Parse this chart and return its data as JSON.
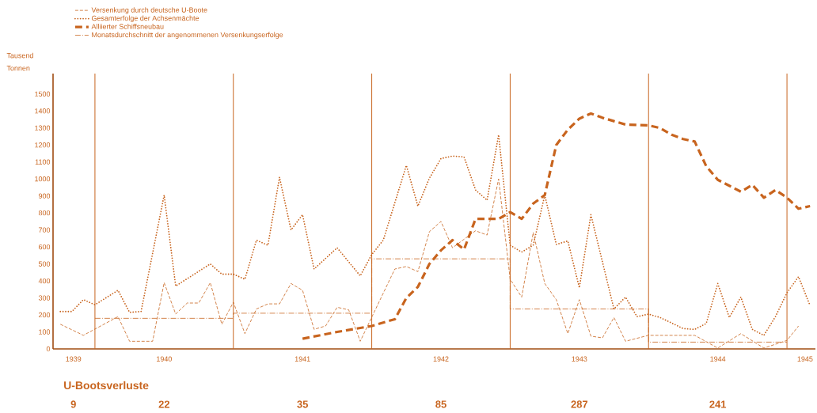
{
  "chart_data": {
    "type": "line",
    "ylabel": "Tausend Tonnen",
    "legend": "top left",
    "xlim": [
      "1939-09-12",
      "1945-03-15"
    ],
    "ylim": [
      0,
      1620
    ],
    "xticks": [
      {
        "value": "1939-11-05",
        "label": "1939"
      },
      {
        "value": "1940-07",
        "label": "1940"
      },
      {
        "value": "1941-07",
        "label": "1941"
      },
      {
        "value": "1942-07",
        "label": "1942"
      },
      {
        "value": "1943-07",
        "label": "1943"
      },
      {
        "value": "1944-07",
        "label": "1944"
      },
      {
        "value": "1945-02-18",
        "label": "1945"
      }
    ],
    "yticks": [
      0,
      100,
      200,
      300,
      400,
      500,
      600,
      700,
      800,
      900,
      1000,
      1100,
      1200,
      1300,
      1400,
      1500
    ],
    "series": [
      {
        "name": "Versenkung durch deutsche U-Boote",
        "color": "#c8641e",
        "line_style": "dashed",
        "x": [
          "1939-10",
          "1939-12",
          "1940-03",
          "1940-04",
          "1940-06",
          "1940-07",
          "1940-08",
          "1940-09",
          "1940-10",
          "1940-11",
          "1940-12",
          "1941-01",
          "1941-02",
          "1941-03",
          "1941-04",
          "1941-05",
          "1941-06",
          "1941-07",
          "1941-08",
          "1941-09",
          "1941-10",
          "1941-11",
          "1941-12",
          "1942-03",
          "1942-04",
          "1942-05",
          "1942-06",
          "1942-07",
          "1942-08",
          "1942-10",
          "1942-11",
          "1942-12",
          "1943-01",
          "1943-02",
          "1943-03",
          "1943-04",
          "1943-05",
          "1943-06",
          "1943-07",
          "1943-08",
          "1943-09",
          "1943-10",
          "1943-11",
          "1944-01",
          "1944-05",
          "1944-07",
          "1944-09",
          "1944-11",
          "1945-01",
          "1945-02"
        ],
        "values": [
          145,
          80,
          190,
          45,
          45,
          390,
          205,
          270,
          270,
          390,
          145,
          275,
          90,
          235,
          265,
          265,
          385,
          345,
          115,
          135,
          245,
          230,
          45,
          470,
          485,
          455,
          690,
          750,
          595,
          695,
          670,
          1000,
          410,
          305,
          685,
          385,
          290,
          90,
          290,
          75,
          65,
          185,
          45,
          80,
          80,
          5,
          90,
          5,
          50,
          135
        ]
      },
      {
        "name": "Gesamterfolge der Achsenmächte",
        "color": "#c8641e",
        "line_style": "dotted",
        "x": [
          "1939-10",
          "1939-11",
          "1939-12",
          "1940-01",
          "1940-03",
          "1940-04",
          "1940-05",
          "1940-07",
          "1940-08",
          "1940-11",
          "1940-12",
          "1941-01",
          "1941-02",
          "1941-03",
          "1941-04",
          "1941-05",
          "1941-06",
          "1941-07",
          "1941-08",
          "1941-10",
          "1941-12",
          "1942-01",
          "1942-02",
          "1942-04",
          "1942-05",
          "1942-06",
          "1942-07",
          "1942-08",
          "1942-09",
          "1942-10",
          "1942-11",
          "1942-12",
          "1943-01",
          "1943-02",
          "1943-03",
          "1943-04",
          "1943-05",
          "1943-06",
          "1943-07",
          "1943-08",
          "1943-10",
          "1943-11",
          "1943-12",
          "1944-01",
          "1944-02",
          "1944-04",
          "1944-05",
          "1944-06",
          "1944-07",
          "1944-08",
          "1944-09",
          "1944-10",
          "1944-11",
          "1944-12",
          "1945-01",
          "1945-02",
          "1945-03"
        ],
        "values": [
          220,
          220,
          290,
          260,
          345,
          215,
          220,
          905,
          370,
          500,
          440,
          440,
          410,
          640,
          610,
          1010,
          700,
          790,
          470,
          595,
          430,
          555,
          640,
          1080,
          840,
          1005,
          1120,
          1135,
          1130,
          935,
          875,
          1260,
          610,
          570,
          610,
          905,
          615,
          635,
          360,
          790,
          235,
          305,
          190,
          205,
          185,
          120,
          115,
          150,
          385,
          185,
          305,
          115,
          80,
          190,
          330,
          425,
          255
        ]
      },
      {
        "name": "Alliierter Schiffsneubau",
        "color": "#c8641e",
        "line_style": "bold dashed",
        "x": [
          "1941-07",
          "1941-10",
          "1942-01",
          "1942-03",
          "1942-04",
          "1942-05",
          "1942-06",
          "1942-07",
          "1942-08",
          "1942-09",
          "1942-10",
          "1942-11",
          "1942-12",
          "1943-01",
          "1943-02",
          "1943-03",
          "1943-04",
          "1943-05",
          "1943-06",
          "1943-07",
          "1943-08",
          "1943-09",
          "1943-10",
          "1943-11",
          "1944-01",
          "1944-02",
          "1944-03",
          "1944-04",
          "1944-05",
          "1944-06",
          "1944-07",
          "1944-08",
          "1944-09",
          "1944-10",
          "1944-11",
          "1944-12",
          "1945-01",
          "1945-02",
          "1945-03"
        ],
        "values": [
          60,
          100,
          135,
          175,
          300,
          365,
          500,
          580,
          640,
          585,
          765,
          765,
          765,
          805,
          765,
          855,
          905,
          1200,
          1290,
          1355,
          1385,
          1360,
          1340,
          1320,
          1315,
          1300,
          1260,
          1235,
          1220,
          1075,
          995,
          960,
          925,
          965,
          890,
          935,
          890,
          825,
          840
        ]
      },
      {
        "name": "Monatsdurchschnitt der angenommenen Versenkungserfolge",
        "color": "#c8641e",
        "line_style": "dashdot",
        "type": "step",
        "x": [
          "1940-01",
          "1941-01",
          "1942-01",
          "1943-01",
          "1944-01",
          "1945-01"
        ],
        "values": [
          180,
          210,
          530,
          235,
          40,
          40
        ]
      }
    ],
    "ref_lines": [
      {
        "axis": "x",
        "value": "1940-01",
        "color": "#c8641e"
      },
      {
        "axis": "x",
        "value": "1941-01",
        "color": "#c8641e"
      },
      {
        "axis": "x",
        "value": "1942-01",
        "color": "#c8641e"
      },
      {
        "axis": "x",
        "value": "1943-01",
        "color": "#c8641e"
      },
      {
        "axis": "x",
        "value": "1944-01",
        "color": "#c8641e"
      },
      {
        "axis": "x",
        "value": "1945-01",
        "color": "#c8641e"
      }
    ],
    "annotations": [
      "U-Bootsverluste",
      "9",
      "22",
      "35",
      "85",
      "287",
      "241"
    ]
  }
}
